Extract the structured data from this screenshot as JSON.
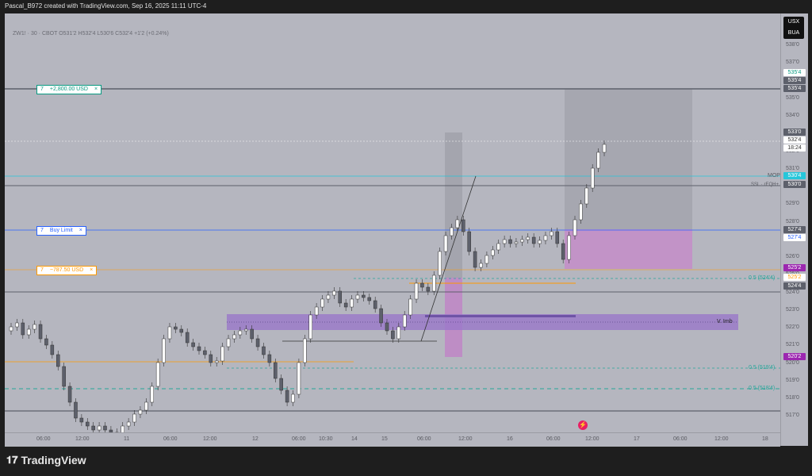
{
  "header": {
    "credit": "Pascal_B972 created with TradingView.com, Sep 16, 2025 11:11 UTC-4"
  },
  "symbol": {
    "line": "ZW1! · 30 · CBOT  O531'2  H532'4  L530'6  C532'4  +1'2 (+0.24%)"
  },
  "currency_badge": {
    "top": "USX",
    "bottom": "BUA"
  },
  "price_axis": {
    "ticks": [
      "538'0",
      "537'0",
      "536'0",
      "535'0",
      "534'0",
      "533'0",
      "532'0",
      "531'0",
      "530'0",
      "529'0",
      "528'0",
      "527'0",
      "526'0",
      "525'0",
      "524'0",
      "523'0",
      "522'0",
      "521'0",
      "520'0",
      "519'0",
      "518'0",
      "517'0"
    ],
    "labels": [
      {
        "text": "535'4",
        "bg": "#ffffff",
        "fg": "#089981"
      },
      {
        "text": "535'4",
        "bg": "#5d606b",
        "fg": "#ffffff"
      },
      {
        "text": "535'4",
        "bg": "#5d606b",
        "fg": "#ffffff"
      },
      {
        "text": "533'0",
        "bg": "#5d606b",
        "fg": "#ffffff"
      },
      {
        "text": "532'4",
        "bg": "#ffffff",
        "fg": "#333333"
      },
      {
        "text": "18:24",
        "bg": "#ffffff",
        "fg": "#333333"
      },
      {
        "text": "530'4",
        "bg": "#26c6da",
        "fg": "#ffffff"
      },
      {
        "text": "530'0",
        "bg": "#5d606b",
        "fg": "#ffffff"
      },
      {
        "text": "527'4",
        "bg": "#5d606b",
        "fg": "#ffffff"
      },
      {
        "text": "527'4",
        "bg": "#ffffff",
        "fg": "#2962ff"
      },
      {
        "text": "525'2",
        "bg": "#9c27b0",
        "fg": "#ffffff"
      },
      {
        "text": "525'2",
        "bg": "#ffffff",
        "fg": "#ff9800"
      },
      {
        "text": "524'4",
        "bg": "#5d606b",
        "fg": "#ffffff"
      },
      {
        "text": "520'2",
        "bg": "#9c27b0",
        "fg": "#ffffff"
      }
    ]
  },
  "time_axis": {
    "ticks": [
      "06:00",
      "12:00",
      "11",
      "06:00",
      "12:00",
      "12",
      "06:00",
      "10:30",
      "14",
      "15",
      "06:00",
      "12:00",
      "16",
      "06:00",
      "12:00",
      "17",
      "06:00",
      "12:00",
      "18"
    ]
  },
  "orders": [
    {
      "qty": "7",
      "text": "+2,800.00 USD",
      "close": "×",
      "color": "#089981"
    },
    {
      "qty": "7",
      "text": "Buy Limit",
      "close": "×",
      "color": "#2962ff"
    },
    {
      "qty": "7",
      "text": "−787.50 USD",
      "close": "×",
      "color": "#ff9800"
    }
  ],
  "annotations": {
    "mop": "MOP",
    "ssl": "SSL · rEQH+",
    "fib1": "0.5 (524'4)",
    "fib2": "0.5 (519'4)",
    "fib3": "0.5 (518'4)",
    "vimb": "V. Imb"
  },
  "colors": {
    "chart_bg": "#b5b6bf",
    "candle_up": "#ffffff",
    "candle_down": "#5d606b",
    "order_line": "#2962ff",
    "stop_line": "#ff9800",
    "target_line": "#089981",
    "fvg": "#9c27b0"
  },
  "brand": {
    "name": "TradingView"
  }
}
